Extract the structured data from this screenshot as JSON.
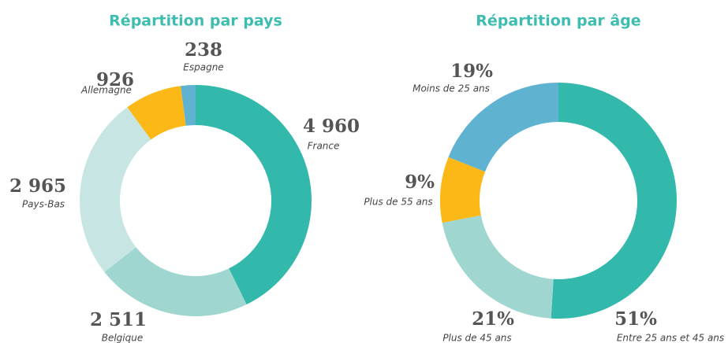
{
  "chart_data": [
    {
      "type": "pie",
      "title": "Répartition par pays",
      "categories": [
        "France",
        "Belgique",
        "Pays-Bas",
        "Allemagne",
        "Espagne"
      ],
      "values": [
        4960,
        2511,
        2965,
        926,
        238
      ],
      "value_labels": [
        "4 960",
        "2 511",
        "2 965",
        "926",
        "238"
      ],
      "colors": [
        "#33b8ac",
        "#9fd6cf",
        "#c7e6e3",
        "#fbb817",
        "#5fb3d1"
      ]
    },
    {
      "type": "pie",
      "title": "Répartition par âge",
      "categories": [
        "Entre 25 ans et 45 ans",
        "Plus de 45 ans",
        "Plus de 55 ans",
        "Moins de 25 ans"
      ],
      "values": [
        51,
        21,
        9,
        19
      ],
      "value_labels": [
        "51%",
        "21%",
        "9%",
        "19%"
      ],
      "colors": [
        "#33b8ac",
        "#9fd6cf",
        "#fbb817",
        "#5fb3d1"
      ]
    }
  ]
}
